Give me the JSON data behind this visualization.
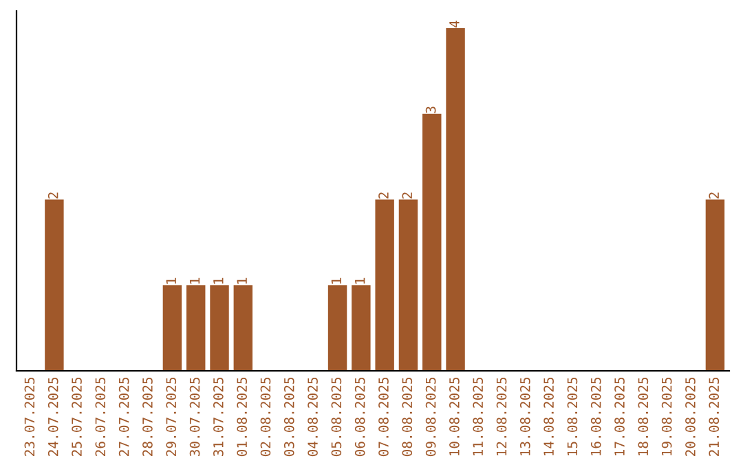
{
  "chart_data": {
    "type": "bar",
    "categories": [
      "23.07.2025",
      "24.07.2025",
      "25.07.2025",
      "26.07.2025",
      "27.07.2025",
      "28.07.2025",
      "29.07.2025",
      "30.07.2025",
      "31.07.2025",
      "01.08.2025",
      "02.08.2025",
      "03.08.2025",
      "04.08.2025",
      "05.08.2025",
      "06.08.2025",
      "07.08.2025",
      "08.08.2025",
      "09.08.2025",
      "10.08.2025",
      "11.08.2025",
      "12.08.2025",
      "13.08.2025",
      "14.08.2025",
      "15.08.2025",
      "16.08.2025",
      "17.08.2025",
      "18.08.2025",
      "19.08.2025",
      "20.08.2025",
      "21.08.2025"
    ],
    "values": [
      0,
      2,
      0,
      0,
      0,
      0,
      1,
      1,
      1,
      1,
      0,
      0,
      0,
      1,
      1,
      2,
      2,
      3,
      4,
      0,
      0,
      0,
      0,
      0,
      0,
      0,
      0,
      0,
      0,
      2
    ],
    "value_labels": [
      null,
      "2",
      null,
      null,
      null,
      null,
      "1",
      "1",
      "1",
      "1",
      null,
      null,
      null,
      "1",
      "1",
      "2",
      "2",
      "3",
      "4",
      null,
      null,
      null,
      null,
      null,
      null,
      null,
      null,
      null,
      null,
      "2"
    ],
    "color": "#a0582a",
    "ylim": [
      0,
      4.2
    ],
    "tick_labels": "x",
    "grid": false,
    "legend": false
  }
}
